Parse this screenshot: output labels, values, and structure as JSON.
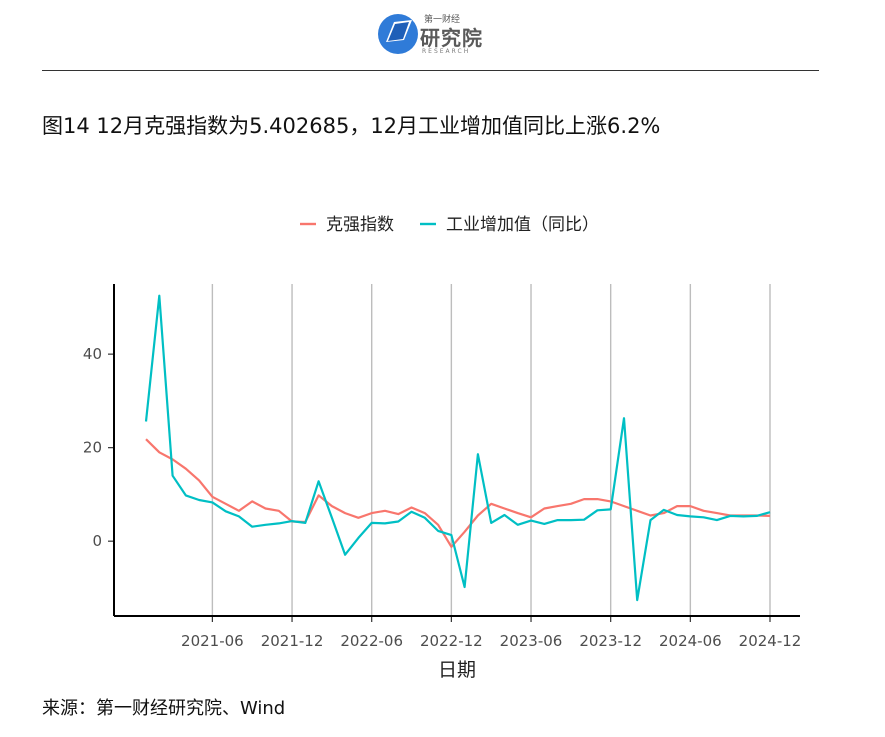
{
  "logo": {
    "top": "第一财经",
    "main": "研究院",
    "sub": "RESEARCH"
  },
  "title": "图14 12月克强指数为5.402685，12月工业增加值同比上涨6.2%",
  "source": "来源：第一财经研究院、Wind",
  "colors": {
    "keqiang": "#F8766D",
    "industrial": "#00BFC4",
    "grid": "#bdbdbd"
  },
  "chart_data": {
    "type": "line",
    "title": "",
    "xlabel": "日期",
    "ylabel": "",
    "x_ticks": [
      "2021-06",
      "2021-12",
      "2022-06",
      "2022-12",
      "2023-06",
      "2023-12",
      "2024-06",
      "2024-12"
    ],
    "y_ticks": [
      0,
      20,
      40
    ],
    "ylim": [
      -16,
      55
    ],
    "grid": "vertical",
    "legend_position": "top",
    "x": [
      "2021-01",
      "2021-02",
      "2021-03",
      "2021-04",
      "2021-05",
      "2021-06",
      "2021-07",
      "2021-08",
      "2021-09",
      "2021-10",
      "2021-11",
      "2021-12",
      "2022-01",
      "2022-02",
      "2022-03",
      "2022-04",
      "2022-05",
      "2022-06",
      "2022-07",
      "2022-08",
      "2022-09",
      "2022-10",
      "2022-11",
      "2022-12",
      "2023-01",
      "2023-02",
      "2023-03",
      "2023-04",
      "2023-05",
      "2023-06",
      "2023-07",
      "2023-08",
      "2023-09",
      "2023-10",
      "2023-11",
      "2023-12",
      "2024-01",
      "2024-02",
      "2024-03",
      "2024-04",
      "2024-05",
      "2024-06",
      "2024-07",
      "2024-08",
      "2024-09",
      "2024-10",
      "2024-11",
      "2024-12"
    ],
    "series": [
      {
        "name": "克强指数",
        "values": [
          21.8,
          19,
          17.5,
          15.5,
          13,
          9.5,
          8,
          6.5,
          8.5,
          7,
          6.5,
          4.2,
          4.1,
          9.8,
          7.5,
          6,
          5,
          6,
          6.5,
          5.8,
          7.2,
          6,
          3.5,
          -1.2,
          2,
          5.5,
          8,
          7,
          6,
          5.1,
          7,
          7.5,
          8,
          9,
          9,
          8.5,
          7.5,
          6.5,
          5.5,
          6,
          7.5,
          7.5,
          6.5,
          6,
          5.5,
          5.5,
          5.5,
          5.4
        ]
      },
      {
        "name": "工业增加值（同比）",
        "values": [
          25.6,
          52.5,
          14,
          9.8,
          8.8,
          8.3,
          6.4,
          5.3,
          3.1,
          3.5,
          3.8,
          4.3,
          3.9,
          12.8,
          5,
          -2.9,
          0.7,
          3.9,
          3.8,
          4.2,
          6.3,
          5,
          2.2,
          1.3,
          -9.8,
          18.6,
          3.9,
          5.6,
          3.5,
          4.4,
          3.7,
          4.5,
          4.5,
          4.6,
          6.6,
          6.8,
          26.3,
          -12.6,
          4.5,
          6.7,
          5.6,
          5.3,
          5.1,
          4.5,
          5.4,
          5.3,
          5.4,
          6.2
        ]
      }
    ]
  }
}
